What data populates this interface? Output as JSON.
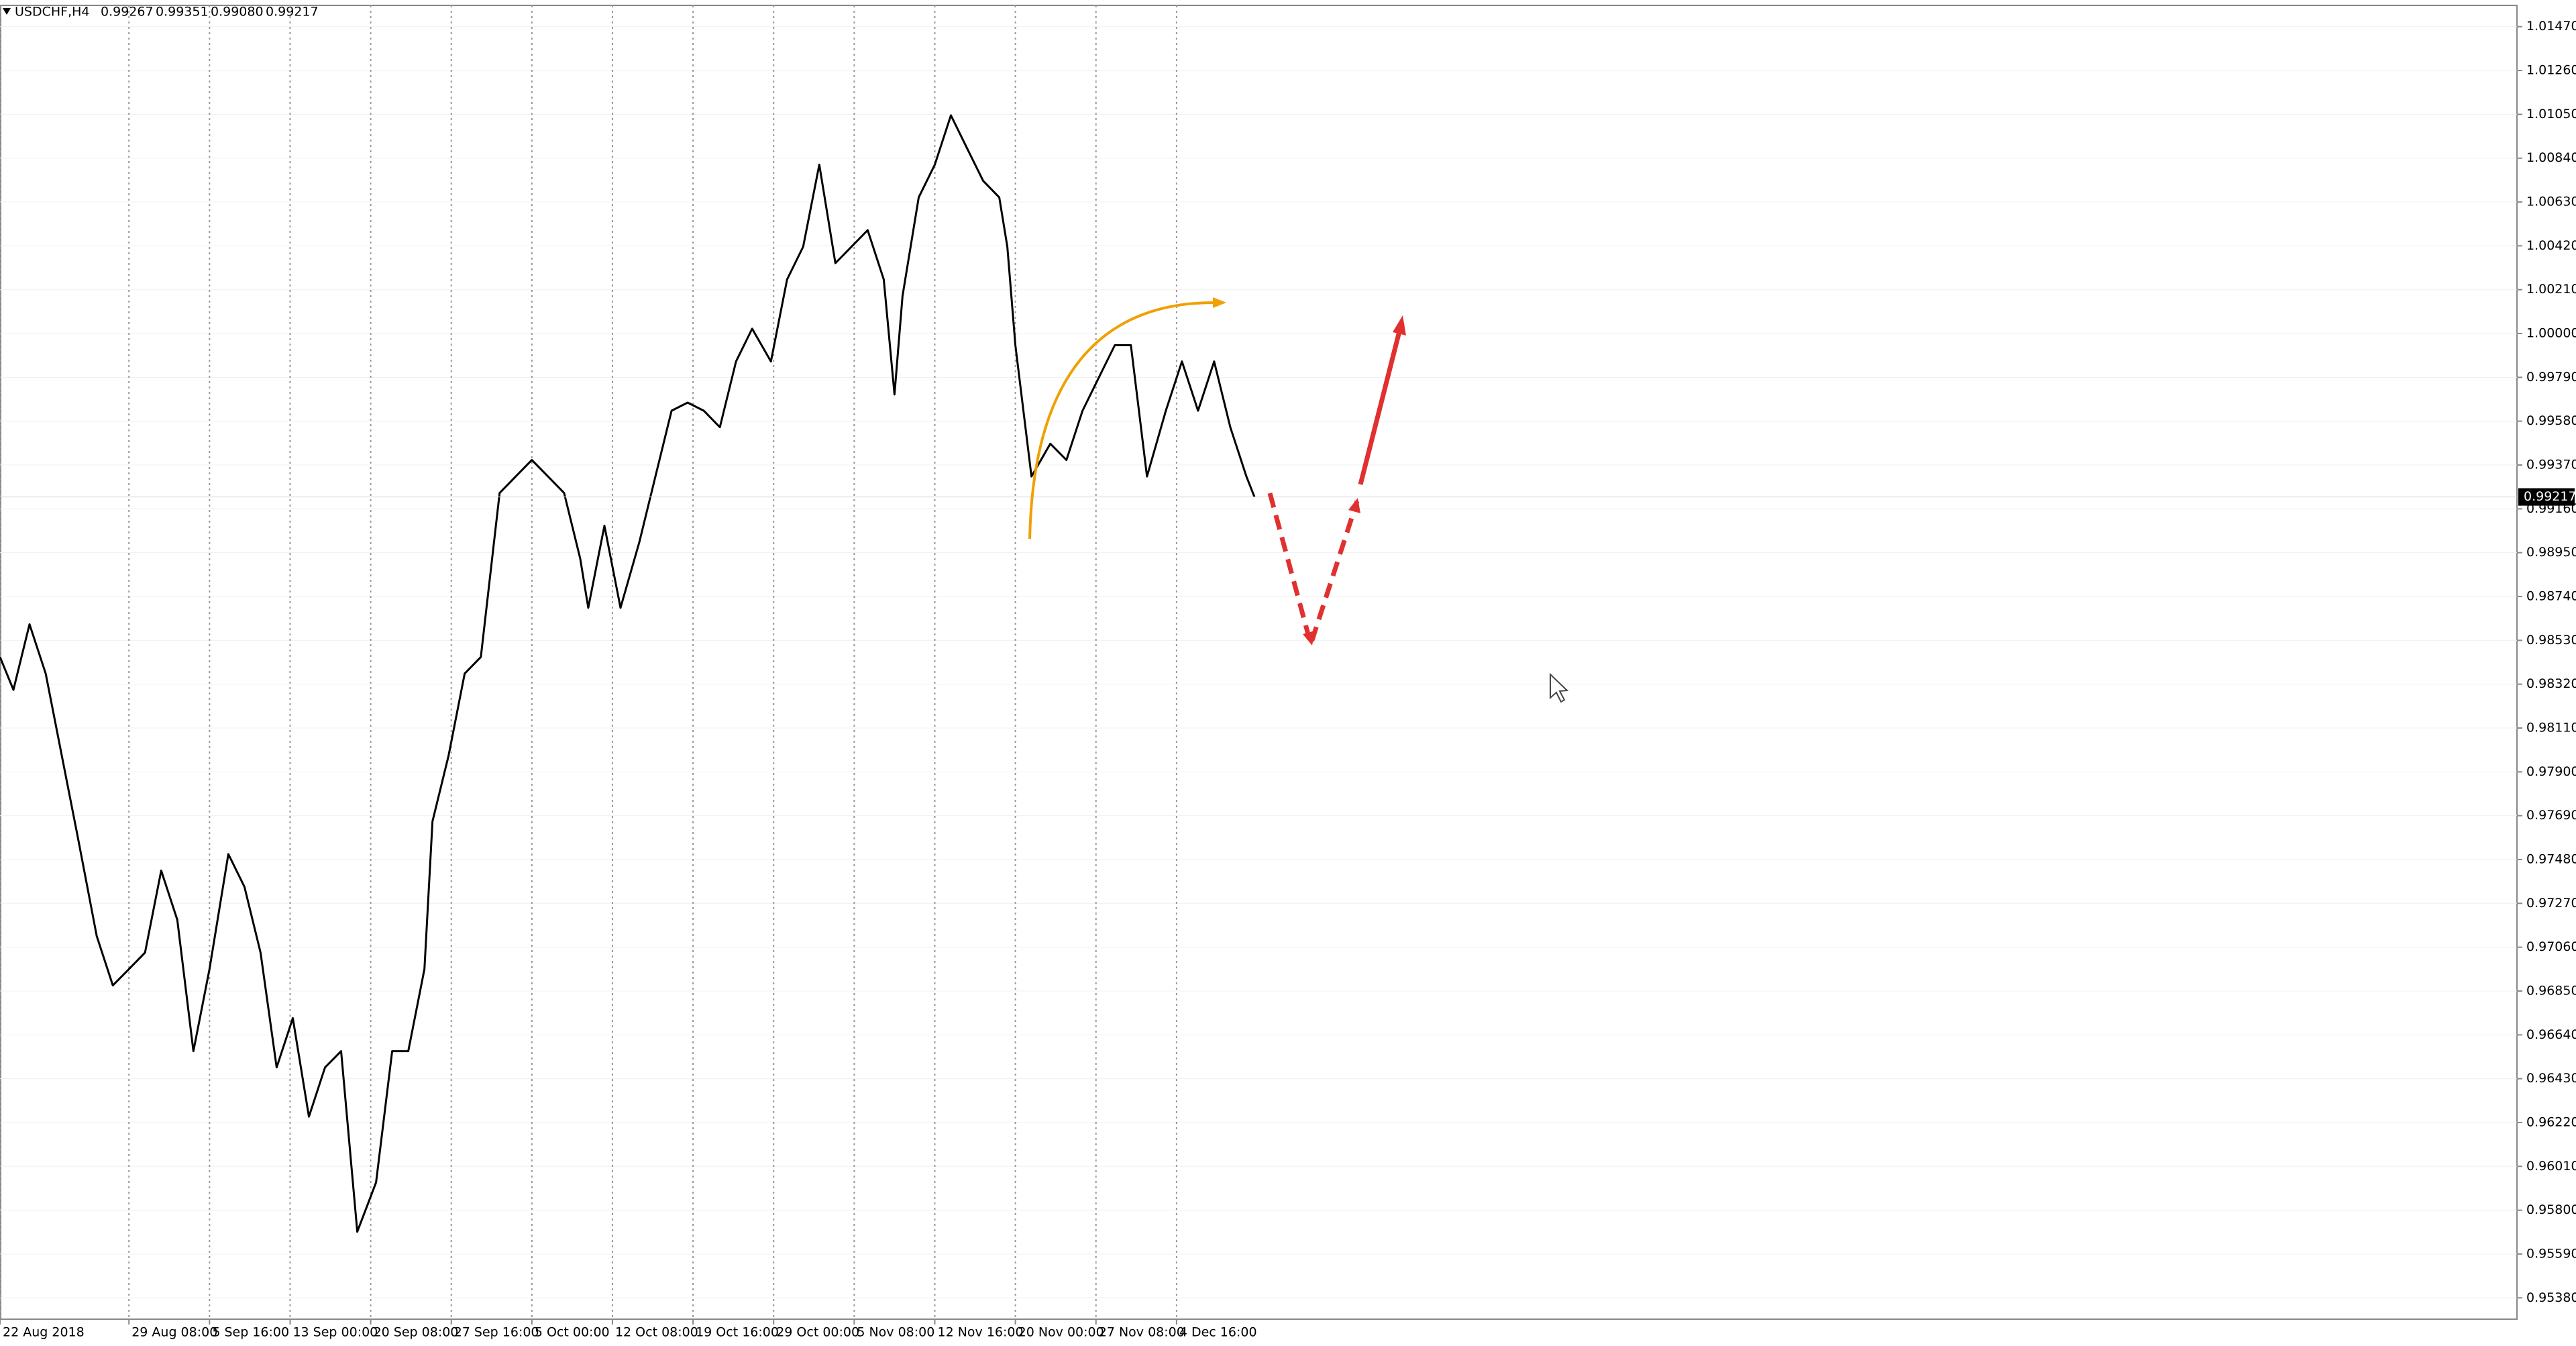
{
  "chart_data": {
    "type": "line",
    "symbol": "USDCHF,H4",
    "ohlc": [
      "0.99267",
      "0.99351",
      "0.99080",
      "0.99217"
    ],
    "last_price": {
      "value": 0.99217,
      "label": "0.99217"
    },
    "color": "#000000",
    "grid": true,
    "x": [
      0,
      5,
      11,
      17,
      23,
      29,
      36,
      42,
      48,
      54,
      60,
      66,
      72,
      78,
      85,
      91,
      97,
      103,
      109,
      115,
      121,
      127,
      133,
      140,
      146,
      152,
      158,
      161,
      167,
      173,
      179,
      186,
      192,
      198,
      204,
      210,
      216,
      219,
      225,
      231,
      238,
      244,
      250,
      256,
      262,
      268,
      274,
      280,
      287,
      293,
      299,
      305,
      311,
      317,
      323,
      329,
      333,
      336,
      342,
      348,
      354,
      360,
      366,
      372,
      375,
      378,
      384,
      391,
      397,
      403,
      409,
      415,
      421,
      427,
      434,
      440,
      446,
      452,
      458,
      464,
      467
    ],
    "values": [
      0.9845,
      0.98293,
      0.98607,
      0.98371,
      0.97978,
      0.97585,
      0.97113,
      0.96877,
      0.96955,
      0.97034,
      0.97427,
      0.97191,
      0.96562,
      0.96955,
      0.97506,
      0.97349,
      0.97034,
      0.96484,
      0.9672,
      0.96248,
      0.96484,
      0.96562,
      0.95697,
      0.95933,
      0.96562,
      0.96562,
      0.96955,
      0.97663,
      0.97978,
      0.98371,
      0.9845,
      0.99236,
      0.99315,
      0.99394,
      0.99315,
      0.99236,
      0.98922,
      0.98686,
      0.99079,
      0.98686,
      0.99,
      0.99315,
      0.9963,
      0.99669,
      0.9963,
      0.99551,
      0.99866,
      1.00023,
      0.99866,
      1.00259,
      1.00416,
      1.00809,
      1.00337,
      1.00416,
      1.00495,
      1.00259,
      0.99708,
      1.0018,
      1.00652,
      1.00809,
      1.01045,
      1.00888,
      1.00731,
      1.00652,
      1.00416,
      0.99944,
      0.99315,
      0.99472,
      0.99394,
      0.9963,
      0.99787,
      0.99944,
      0.99944,
      0.99315,
      0.9963,
      0.99866,
      0.9963,
      0.99866,
      0.99551,
      0.99315,
      0.99217
    ],
    "xlim": [
      0,
      937
    ],
    "xticks": [
      {
        "value": 0,
        "label": "22 Aug 2018"
      },
      {
        "value": 48,
        "label": "29 Aug 08:00"
      },
      {
        "value": 78,
        "label": "5 Sep 16:00"
      },
      {
        "value": 108,
        "label": "13 Sep 00:00"
      },
      {
        "value": 138,
        "label": "20 Sep 08:00"
      },
      {
        "value": 168,
        "label": "27 Sep 16:00"
      },
      {
        "value": 198,
        "label": "5 Oct 00:00"
      },
      {
        "value": 228,
        "label": "12 Oct 08:00"
      },
      {
        "value": 258,
        "label": "19 Oct 16:00"
      },
      {
        "value": 288,
        "label": "29 Oct 00:00"
      },
      {
        "value": 318,
        "label": "5 Nov 08:00"
      },
      {
        "value": 348,
        "label": "12 Nov 16:00"
      },
      {
        "value": 378,
        "label": "20 Nov 00:00"
      },
      {
        "value": 408,
        "label": "27 Nov 08:00"
      },
      {
        "value": 438,
        "label": "4 Dec 16:00"
      }
    ],
    "ylim": [
      0.95278,
      1.01572
    ],
    "yticks": [
      {
        "value": 1.0147,
        "label": "1.01470"
      },
      {
        "value": 1.0126,
        "label": "1.01260"
      },
      {
        "value": 1.0105,
        "label": "1.01050"
      },
      {
        "value": 1.0084,
        "label": "1.00840"
      },
      {
        "value": 1.0063,
        "label": "1.00630"
      },
      {
        "value": 1.0042,
        "label": "1.00420"
      },
      {
        "value": 1.0021,
        "label": "1.00210"
      },
      {
        "value": 1.0,
        "label": "1.00000"
      },
      {
        "value": 0.9979,
        "label": "0.99790"
      },
      {
        "value": 0.9958,
        "label": "0.99580"
      },
      {
        "value": 0.9937,
        "label": "0.99370"
      },
      {
        "value": 0.9916,
        "label": "0.99160"
      },
      {
        "value": 0.9895,
        "label": "0.98950"
      },
      {
        "value": 0.9874,
        "label": "0.98740"
      },
      {
        "value": 0.9853,
        "label": "0.98530"
      },
      {
        "value": 0.9832,
        "label": "0.98320"
      },
      {
        "value": 0.9811,
        "label": "0.98110"
      },
      {
        "value": 0.979,
        "label": "0.97900"
      },
      {
        "value": 0.9769,
        "label": "0.97690"
      },
      {
        "value": 0.9748,
        "label": "0.97480"
      },
      {
        "value": 0.9727,
        "label": "0.97270"
      },
      {
        "value": 0.9706,
        "label": "0.97060"
      },
      {
        "value": 0.9685,
        "label": "0.96850"
      },
      {
        "value": 0.9664,
        "label": "0.96640"
      },
      {
        "value": 0.9643,
        "label": "0.96430"
      },
      {
        "value": 0.9622,
        "label": "0.96220"
      },
      {
        "value": 0.9601,
        "label": "0.96010"
      },
      {
        "value": 0.958,
        "label": "0.95800"
      },
      {
        "value": 0.9559,
        "label": "0.95590"
      },
      {
        "value": 0.9538,
        "label": "0.95380"
      }
    ]
  }
}
